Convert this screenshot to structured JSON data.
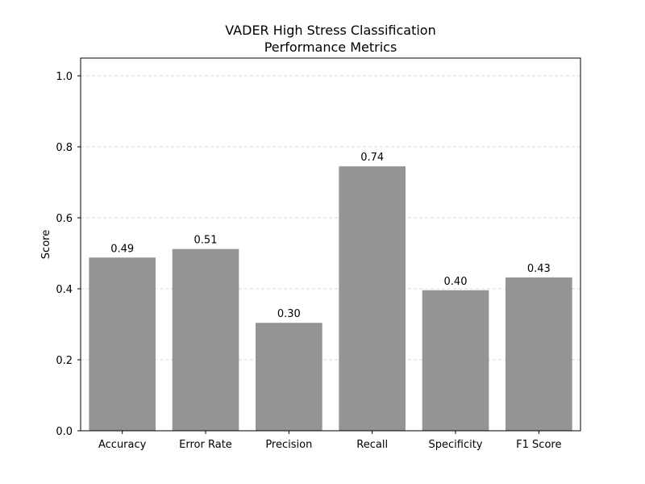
{
  "chart_data": {
    "type": "bar",
    "title": [
      "VADER High Stress Classification",
      "Performance Metrics"
    ],
    "xlabel": "",
    "ylabel": "Score",
    "categories": [
      "Accuracy",
      "Error Rate",
      "Precision",
      "Recall",
      "Specificity",
      "F1 Score"
    ],
    "values": [
      0.488,
      0.512,
      0.304,
      0.745,
      0.396,
      0.432
    ],
    "data_labels": [
      "0.49",
      "0.51",
      "0.30",
      "0.74",
      "0.40",
      "0.43"
    ],
    "ylim": [
      0,
      1.05
    ],
    "yticks": [
      0.0,
      0.2,
      0.4,
      0.6,
      0.8,
      1.0
    ],
    "ytick_labels": [
      "0.0",
      "0.2",
      "0.4",
      "0.6",
      "0.8",
      "1.0"
    ],
    "grid": "y-dashed",
    "bar_color": "#939593"
  }
}
